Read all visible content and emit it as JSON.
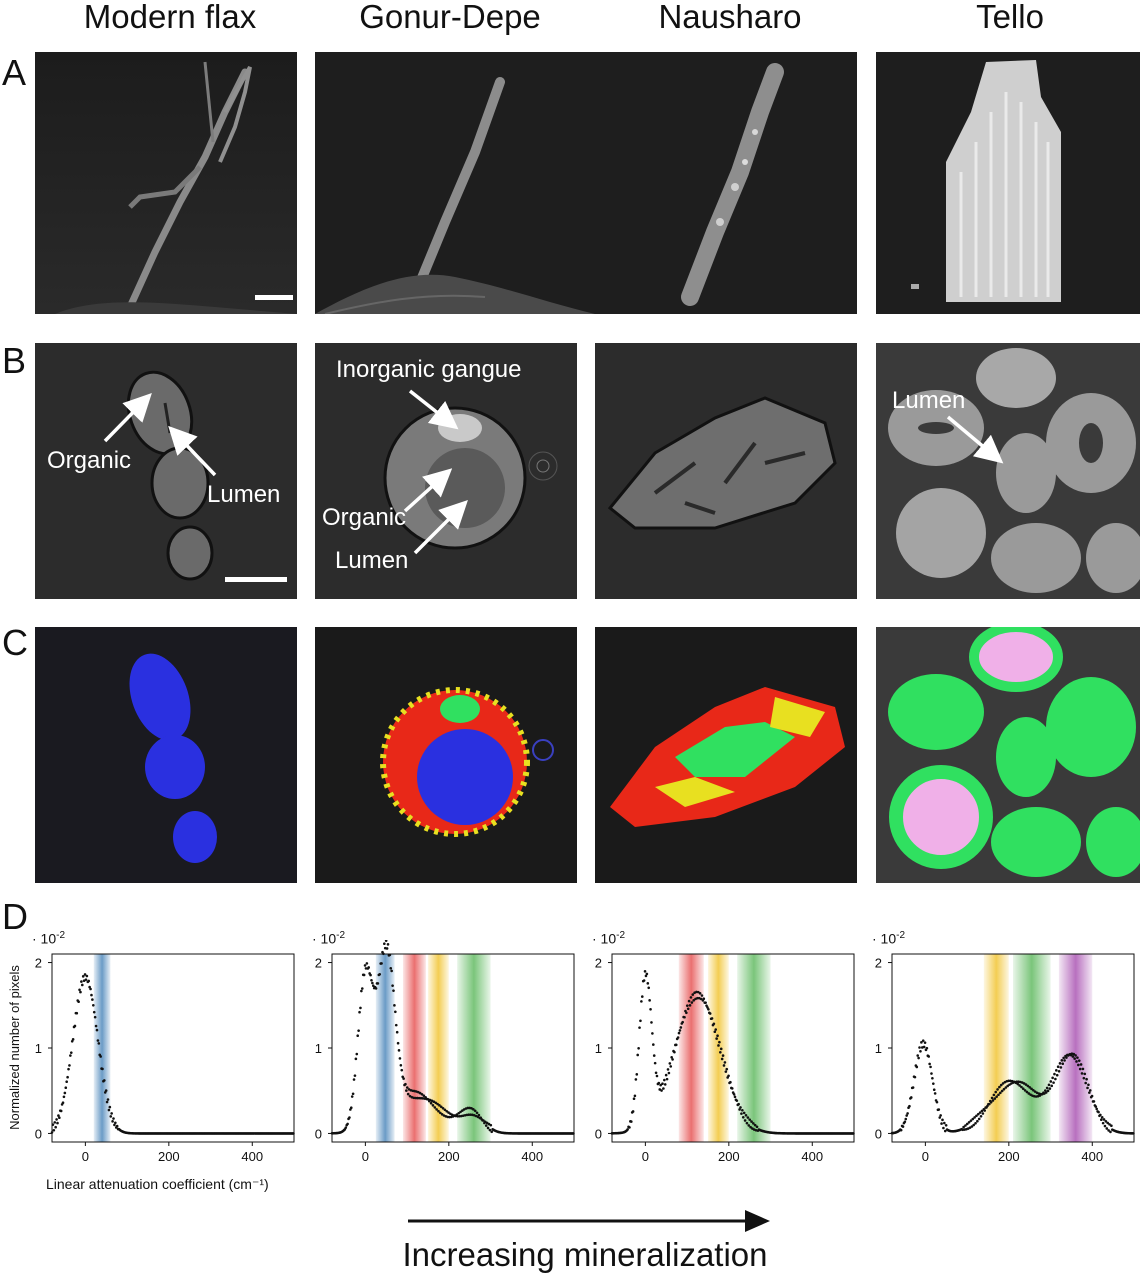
{
  "columns": [
    "Modern flax",
    "Gonur-Depe",
    "Nausharo",
    "Tello"
  ],
  "row_labels": [
    "A",
    "B",
    "C",
    "D"
  ],
  "annotations": {
    "flax_organic": "Organic",
    "flax_lumen": "Lumen",
    "gonur_gangue": "Inorganic gangue",
    "gonur_organic": "Organic",
    "gonur_lumen": "Lumen",
    "tello_lumen": "Lumen"
  },
  "colors": {
    "organic_blue": "#2a30e0",
    "red": "#e82818",
    "yellow": "#e8e020",
    "green": "#30e060",
    "pink": "#f0b0e8",
    "band_blue": "#5a90c0",
    "band_red": "#e86060",
    "band_yellow": "#f2c840",
    "band_green": "#6cbf6c",
    "band_purple": "#b060b8"
  },
  "histogram_common": {
    "ylabel": "Normalized number of pixels",
    "xlabel": "Linear attenuation coefficient (cm⁻¹)",
    "scale_prefix": "· 10",
    "scale_exp": "-2",
    "x_ticks": [
      "0",
      "200",
      "400"
    ],
    "y_ticks": [
      "0",
      "1",
      "2"
    ]
  },
  "arrow_label": "Increasing mineralization",
  "chart_data": [
    {
      "type": "scatter",
      "title": "Modern flax",
      "xlim": [
        -80,
        500
      ],
      "ylim": [
        -0.1,
        2.1
      ],
      "y_scale_note": "· 10^-2",
      "peaks": [
        {
          "x": 0,
          "y": 1.83,
          "w": 30
        }
      ],
      "bands": [
        {
          "from": 20,
          "to": 60,
          "color": "band_blue"
        }
      ],
      "grid": false
    },
    {
      "type": "scatter",
      "title": "Gonur-Depe",
      "xlim": [
        -80,
        500
      ],
      "ylim": [
        -0.1,
        2.1
      ],
      "peaks": [
        {
          "x": 0,
          "y": 1.8,
          "w": 18
        },
        {
          "x": 50,
          "y": 1.95,
          "w": 20
        },
        {
          "x": 120,
          "y": 0.45,
          "w": 60
        },
        {
          "x": 255,
          "y": 0.22,
          "w": 28
        }
      ],
      "bands": [
        {
          "from": 25,
          "to": 70,
          "color": "band_blue"
        },
        {
          "from": 90,
          "to": 145,
          "color": "band_red"
        },
        {
          "from": 150,
          "to": 200,
          "color": "band_yellow"
        },
        {
          "from": 220,
          "to": 300,
          "color": "band_green"
        }
      ],
      "grid": false
    },
    {
      "type": "scatter",
      "title": "Nausharo",
      "xlim": [
        -80,
        500
      ],
      "ylim": [
        -0.1,
        2.1
      ],
      "peaks": [
        {
          "x": 0,
          "y": 1.75,
          "w": 15
        },
        {
          "x": 125,
          "y": 1.62,
          "w": 55
        }
      ],
      "bands": [
        {
          "from": 80,
          "to": 140,
          "color": "band_red"
        },
        {
          "from": 150,
          "to": 200,
          "color": "band_yellow"
        },
        {
          "from": 220,
          "to": 300,
          "color": "band_green"
        }
      ],
      "grid": false
    },
    {
      "type": "scatter",
      "title": "Tello",
      "xlim": [
        -80,
        500
      ],
      "ylim": [
        -0.1,
        2.1
      ],
      "peaks": [
        {
          "x": -5,
          "y": 1.05,
          "w": 22
        },
        {
          "x": 210,
          "y": 0.6,
          "w": 55
        },
        {
          "x": 350,
          "y": 0.9,
          "w": 40
        }
      ],
      "bands": [
        {
          "from": 140,
          "to": 200,
          "color": "band_yellow"
        },
        {
          "from": 210,
          "to": 300,
          "color": "band_green"
        },
        {
          "from": 320,
          "to": 400,
          "color": "band_purple"
        }
      ],
      "grid": false
    }
  ]
}
